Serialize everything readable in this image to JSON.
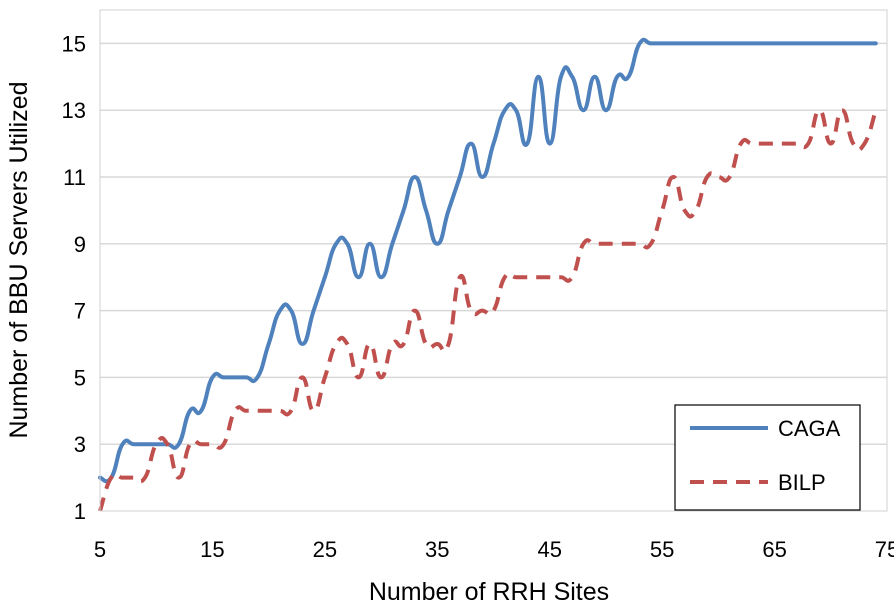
{
  "chart_data": {
    "type": "line",
    "title": "",
    "xlabel": "Number of RRH Sites",
    "ylabel": "Number of BBU Servers Utilized",
    "xlim": [
      5,
      75
    ],
    "ylim": [
      1,
      16
    ],
    "xticks": [
      5,
      15,
      25,
      35,
      45,
      55,
      65,
      75
    ],
    "yticks": [
      1,
      3,
      5,
      7,
      9,
      11,
      13,
      15
    ],
    "grid": "horizontal",
    "legend_position": "bottom-right",
    "series": [
      {
        "name": "CAGA",
        "color": "#4f81bd",
        "style": "solid",
        "x": [
          5,
          6,
          7,
          8,
          9,
          10,
          11,
          12,
          13,
          14,
          15,
          16,
          17,
          18,
          19,
          20,
          21,
          22,
          23,
          24,
          25,
          26,
          27,
          28,
          29,
          30,
          31,
          32,
          33,
          34,
          35,
          36,
          37,
          38,
          39,
          40,
          41,
          42,
          43,
          44,
          45,
          46,
          47,
          48,
          49,
          50,
          51,
          52,
          53,
          54,
          55,
          56,
          57,
          58,
          59,
          60,
          61,
          62,
          63,
          64,
          65,
          66,
          67,
          68,
          69,
          70,
          71,
          72,
          73,
          74
        ],
        "values": [
          2,
          2,
          3,
          3,
          3,
          3,
          3,
          3,
          4,
          4,
          5,
          5,
          5,
          5,
          5,
          6,
          7,
          7,
          6,
          7,
          8,
          9,
          9,
          8,
          9,
          8,
          9,
          10,
          11,
          10,
          9,
          10,
          11,
          12,
          11,
          12,
          13,
          13,
          12,
          14,
          12,
          14,
          14,
          13,
          14,
          13,
          14,
          14,
          15,
          15,
          15,
          15,
          15,
          15,
          15,
          15,
          15,
          15,
          15,
          15,
          15,
          15,
          15,
          15,
          15,
          15,
          15,
          15,
          15,
          15
        ]
      },
      {
        "name": "BILP",
        "color": "#c0504d",
        "style": "dashed",
        "x": [
          5,
          6,
          7,
          8,
          9,
          10,
          11,
          12,
          13,
          14,
          15,
          16,
          17,
          18,
          19,
          20,
          21,
          22,
          23,
          24,
          25,
          26,
          27,
          28,
          29,
          30,
          31,
          32,
          33,
          34,
          35,
          36,
          37,
          38,
          39,
          40,
          41,
          42,
          43,
          44,
          45,
          46,
          47,
          48,
          49,
          50,
          51,
          52,
          53,
          54,
          55,
          56,
          57,
          58,
          59,
          60,
          61,
          62,
          63,
          64,
          65,
          66,
          67,
          68,
          69,
          70,
          71,
          72,
          73,
          74
        ],
        "values": [
          1,
          2,
          2,
          2,
          2,
          3,
          3,
          2,
          3,
          3,
          3,
          3,
          4,
          4,
          4,
          4,
          4,
          4,
          5,
          4,
          5,
          6,
          6,
          5,
          6,
          5,
          6,
          6,
          7,
          6,
          6,
          6,
          8,
          7,
          7,
          7,
          8,
          8,
          8,
          8,
          8,
          8,
          8,
          9,
          9,
          9,
          9,
          9,
          9,
          9,
          10,
          11,
          10,
          10,
          11,
          11,
          11,
          12,
          12,
          12,
          12,
          12,
          12,
          12,
          13,
          12,
          13,
          12,
          12,
          13
        ]
      }
    ]
  }
}
